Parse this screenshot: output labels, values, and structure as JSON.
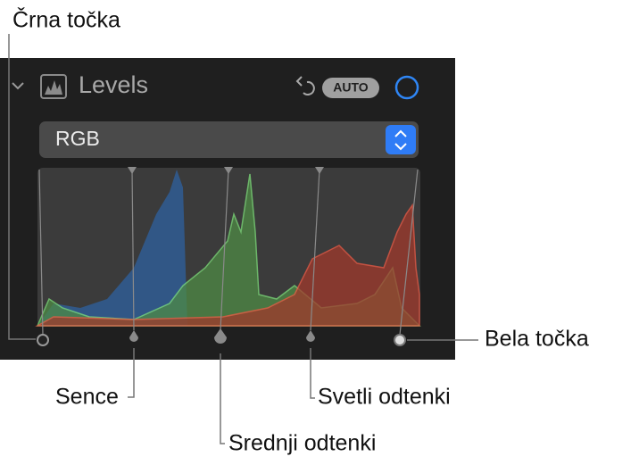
{
  "panel": {
    "title": "Levels",
    "auto_button": "AUTO",
    "channel": "RGB"
  },
  "callouts": {
    "black_point": "Črna točka",
    "shadows": "Sence",
    "midtones": "Srednji odtenki",
    "highlights": "Svetli odtenki",
    "white_point": "Bela točka"
  }
}
